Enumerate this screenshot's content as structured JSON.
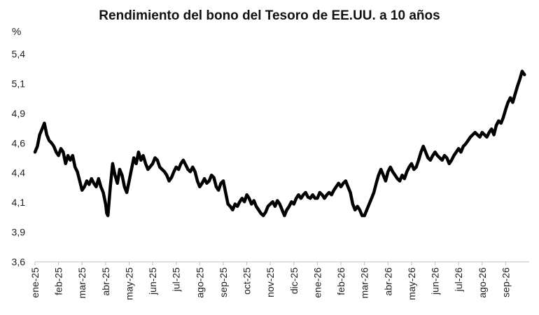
{
  "chart_data": {
    "type": "line",
    "title": "Rendimiento del bono del Tesoro de EE.UU. a 10 años",
    "y_unit": "%",
    "ylim": [
      3.6,
      5.4
    ],
    "y_ticks": [
      "3,6",
      "3,9",
      "4,1",
      "4,4",
      "4,6",
      "4,9",
      "5,1",
      "5,4"
    ],
    "x_ticks": [
      "ene-25",
      "feb-25",
      "mar-25",
      "abr-25",
      "may-25",
      "jun-25",
      "jul-25",
      "ago-25",
      "sep-25",
      "oct-25",
      "nov-25",
      "dic-25",
      "ene-26",
      "feb-26",
      "mar-26",
      "abr-26",
      "may-26",
      "jun-26",
      "jul-26",
      "ago-26",
      "sep-26"
    ],
    "grid": false,
    "series": [
      {
        "color": "#000000",
        "points": [
          [
            0.0,
            4.55
          ],
          [
            0.1,
            4.6
          ],
          [
            0.2,
            4.7
          ],
          [
            0.3,
            4.75
          ],
          [
            0.4,
            4.8
          ],
          [
            0.5,
            4.7
          ],
          [
            0.6,
            4.65
          ],
          [
            0.7,
            4.63
          ],
          [
            0.8,
            4.6
          ],
          [
            0.9,
            4.55
          ],
          [
            1.0,
            4.52
          ],
          [
            1.1,
            4.58
          ],
          [
            1.2,
            4.55
          ],
          [
            1.3,
            4.45
          ],
          [
            1.4,
            4.52
          ],
          [
            1.5,
            4.48
          ],
          [
            1.6,
            4.52
          ],
          [
            1.7,
            4.42
          ],
          [
            1.8,
            4.38
          ],
          [
            1.9,
            4.3
          ],
          [
            2.0,
            4.22
          ],
          [
            2.1,
            4.25
          ],
          [
            2.2,
            4.3
          ],
          [
            2.3,
            4.27
          ],
          [
            2.4,
            4.32
          ],
          [
            2.5,
            4.28
          ],
          [
            2.6,
            4.25
          ],
          [
            2.7,
            4.32
          ],
          [
            2.8,
            4.25
          ],
          [
            2.9,
            4.2
          ],
          [
            3.0,
            4.1
          ],
          [
            3.05,
            4.02
          ],
          [
            3.1,
            4.0
          ],
          [
            3.2,
            4.25
          ],
          [
            3.3,
            4.45
          ],
          [
            3.4,
            4.35
          ],
          [
            3.5,
            4.28
          ],
          [
            3.6,
            4.4
          ],
          [
            3.7,
            4.35
          ],
          [
            3.8,
            4.25
          ],
          [
            3.9,
            4.2
          ],
          [
            4.0,
            4.3
          ],
          [
            4.1,
            4.4
          ],
          [
            4.2,
            4.5
          ],
          [
            4.3,
            4.45
          ],
          [
            4.4,
            4.55
          ],
          [
            4.5,
            4.48
          ],
          [
            4.6,
            4.52
          ],
          [
            4.7,
            4.45
          ],
          [
            4.8,
            4.4
          ],
          [
            5.0,
            4.45
          ],
          [
            5.1,
            4.5
          ],
          [
            5.2,
            4.48
          ],
          [
            5.3,
            4.42
          ],
          [
            5.4,
            4.4
          ],
          [
            5.5,
            4.38
          ],
          [
            5.6,
            4.35
          ],
          [
            5.7,
            4.3
          ],
          [
            5.8,
            4.33
          ],
          [
            5.9,
            4.38
          ],
          [
            6.0,
            4.42
          ],
          [
            6.1,
            4.4
          ],
          [
            6.2,
            4.45
          ],
          [
            6.3,
            4.48
          ],
          [
            6.4,
            4.44
          ],
          [
            6.5,
            4.4
          ],
          [
            6.6,
            4.38
          ],
          [
            6.7,
            4.42
          ],
          [
            6.8,
            4.38
          ],
          [
            6.9,
            4.3
          ],
          [
            7.0,
            4.25
          ],
          [
            7.1,
            4.28
          ],
          [
            7.2,
            4.32
          ],
          [
            7.3,
            4.28
          ],
          [
            7.4,
            4.3
          ],
          [
            7.5,
            4.35
          ],
          [
            7.6,
            4.33
          ],
          [
            7.7,
            4.25
          ],
          [
            7.8,
            4.22
          ],
          [
            7.9,
            4.28
          ],
          [
            8.0,
            4.3
          ],
          [
            8.1,
            4.2
          ],
          [
            8.2,
            4.1
          ],
          [
            8.3,
            4.08
          ],
          [
            8.4,
            4.05
          ],
          [
            8.5,
            4.1
          ],
          [
            8.6,
            4.08
          ],
          [
            8.7,
            4.12
          ],
          [
            8.8,
            4.15
          ],
          [
            8.9,
            4.12
          ],
          [
            9.0,
            4.18
          ],
          [
            9.1,
            4.15
          ],
          [
            9.2,
            4.1
          ],
          [
            9.3,
            4.13
          ],
          [
            9.4,
            4.08
          ],
          [
            9.5,
            4.05
          ],
          [
            9.6,
            4.02
          ],
          [
            9.7,
            4.0
          ],
          [
            9.8,
            4.03
          ],
          [
            9.9,
            4.08
          ],
          [
            10.0,
            4.1
          ],
          [
            10.1,
            4.12
          ],
          [
            10.2,
            4.08
          ],
          [
            10.3,
            4.13
          ],
          [
            10.4,
            4.1
          ],
          [
            10.5,
            4.05
          ],
          [
            10.6,
            4.0
          ],
          [
            10.7,
            4.05
          ],
          [
            10.8,
            4.08
          ],
          [
            10.9,
            4.12
          ],
          [
            11.0,
            4.1
          ],
          [
            11.1,
            4.15
          ],
          [
            11.2,
            4.18
          ],
          [
            11.3,
            4.15
          ],
          [
            11.4,
            4.18
          ],
          [
            11.5,
            4.2
          ],
          [
            11.6,
            4.16
          ],
          [
            11.7,
            4.15
          ],
          [
            11.8,
            4.18
          ],
          [
            11.9,
            4.15
          ],
          [
            12.0,
            4.15
          ],
          [
            12.1,
            4.2
          ],
          [
            12.2,
            4.18
          ],
          [
            12.3,
            4.15
          ],
          [
            12.4,
            4.18
          ],
          [
            12.5,
            4.2
          ],
          [
            12.6,
            4.18
          ],
          [
            12.7,
            4.22
          ],
          [
            12.8,
            4.25
          ],
          [
            12.9,
            4.28
          ],
          [
            13.0,
            4.25
          ],
          [
            13.1,
            4.28
          ],
          [
            13.2,
            4.3
          ],
          [
            13.3,
            4.25
          ],
          [
            13.4,
            4.2
          ],
          [
            13.5,
            4.1
          ],
          [
            13.6,
            4.05
          ],
          [
            13.7,
            4.08
          ],
          [
            13.8,
            4.05
          ],
          [
            13.9,
            4.0
          ],
          [
            14.0,
            4.0
          ],
          [
            14.1,
            4.05
          ],
          [
            14.2,
            4.1
          ],
          [
            14.3,
            4.15
          ],
          [
            14.4,
            4.2
          ],
          [
            14.5,
            4.28
          ],
          [
            14.6,
            4.35
          ],
          [
            14.7,
            4.4
          ],
          [
            14.8,
            4.35
          ],
          [
            14.9,
            4.3
          ],
          [
            15.0,
            4.38
          ],
          [
            15.1,
            4.42
          ],
          [
            15.2,
            4.38
          ],
          [
            15.3,
            4.35
          ],
          [
            15.4,
            4.32
          ],
          [
            15.5,
            4.3
          ],
          [
            15.6,
            4.35
          ],
          [
            15.7,
            4.32
          ],
          [
            15.8,
            4.38
          ],
          [
            15.9,
            4.42
          ],
          [
            16.0,
            4.45
          ],
          [
            16.1,
            4.4
          ],
          [
            16.2,
            4.42
          ],
          [
            16.3,
            4.48
          ],
          [
            16.4,
            4.55
          ],
          [
            16.5,
            4.6
          ],
          [
            16.6,
            4.55
          ],
          [
            16.7,
            4.5
          ],
          [
            16.8,
            4.48
          ],
          [
            16.9,
            4.52
          ],
          [
            17.0,
            4.55
          ],
          [
            17.1,
            4.52
          ],
          [
            17.2,
            4.5
          ],
          [
            17.3,
            4.48
          ],
          [
            17.4,
            4.52
          ],
          [
            17.5,
            4.5
          ],
          [
            17.6,
            4.45
          ],
          [
            17.7,
            4.48
          ],
          [
            17.8,
            4.52
          ],
          [
            17.9,
            4.55
          ],
          [
            18.0,
            4.58
          ],
          [
            18.1,
            4.55
          ],
          [
            18.2,
            4.6
          ],
          [
            18.3,
            4.62
          ],
          [
            18.4,
            4.65
          ],
          [
            18.5,
            4.68
          ],
          [
            18.6,
            4.7
          ],
          [
            18.7,
            4.72
          ],
          [
            18.8,
            4.7
          ],
          [
            18.9,
            4.68
          ],
          [
            19.0,
            4.72
          ],
          [
            19.1,
            4.7
          ],
          [
            19.2,
            4.68
          ],
          [
            19.3,
            4.72
          ],
          [
            19.4,
            4.75
          ],
          [
            19.5,
            4.7
          ],
          [
            19.6,
            4.78
          ],
          [
            19.7,
            4.82
          ],
          [
            19.8,
            4.8
          ],
          [
            19.9,
            4.85
          ],
          [
            20.0,
            4.92
          ],
          [
            20.1,
            4.98
          ],
          [
            20.2,
            5.02
          ],
          [
            20.3,
            4.98
          ],
          [
            20.4,
            5.05
          ],
          [
            20.5,
            5.12
          ],
          [
            20.6,
            5.18
          ],
          [
            20.7,
            5.25
          ],
          [
            20.8,
            5.22
          ]
        ]
      }
    ]
  }
}
